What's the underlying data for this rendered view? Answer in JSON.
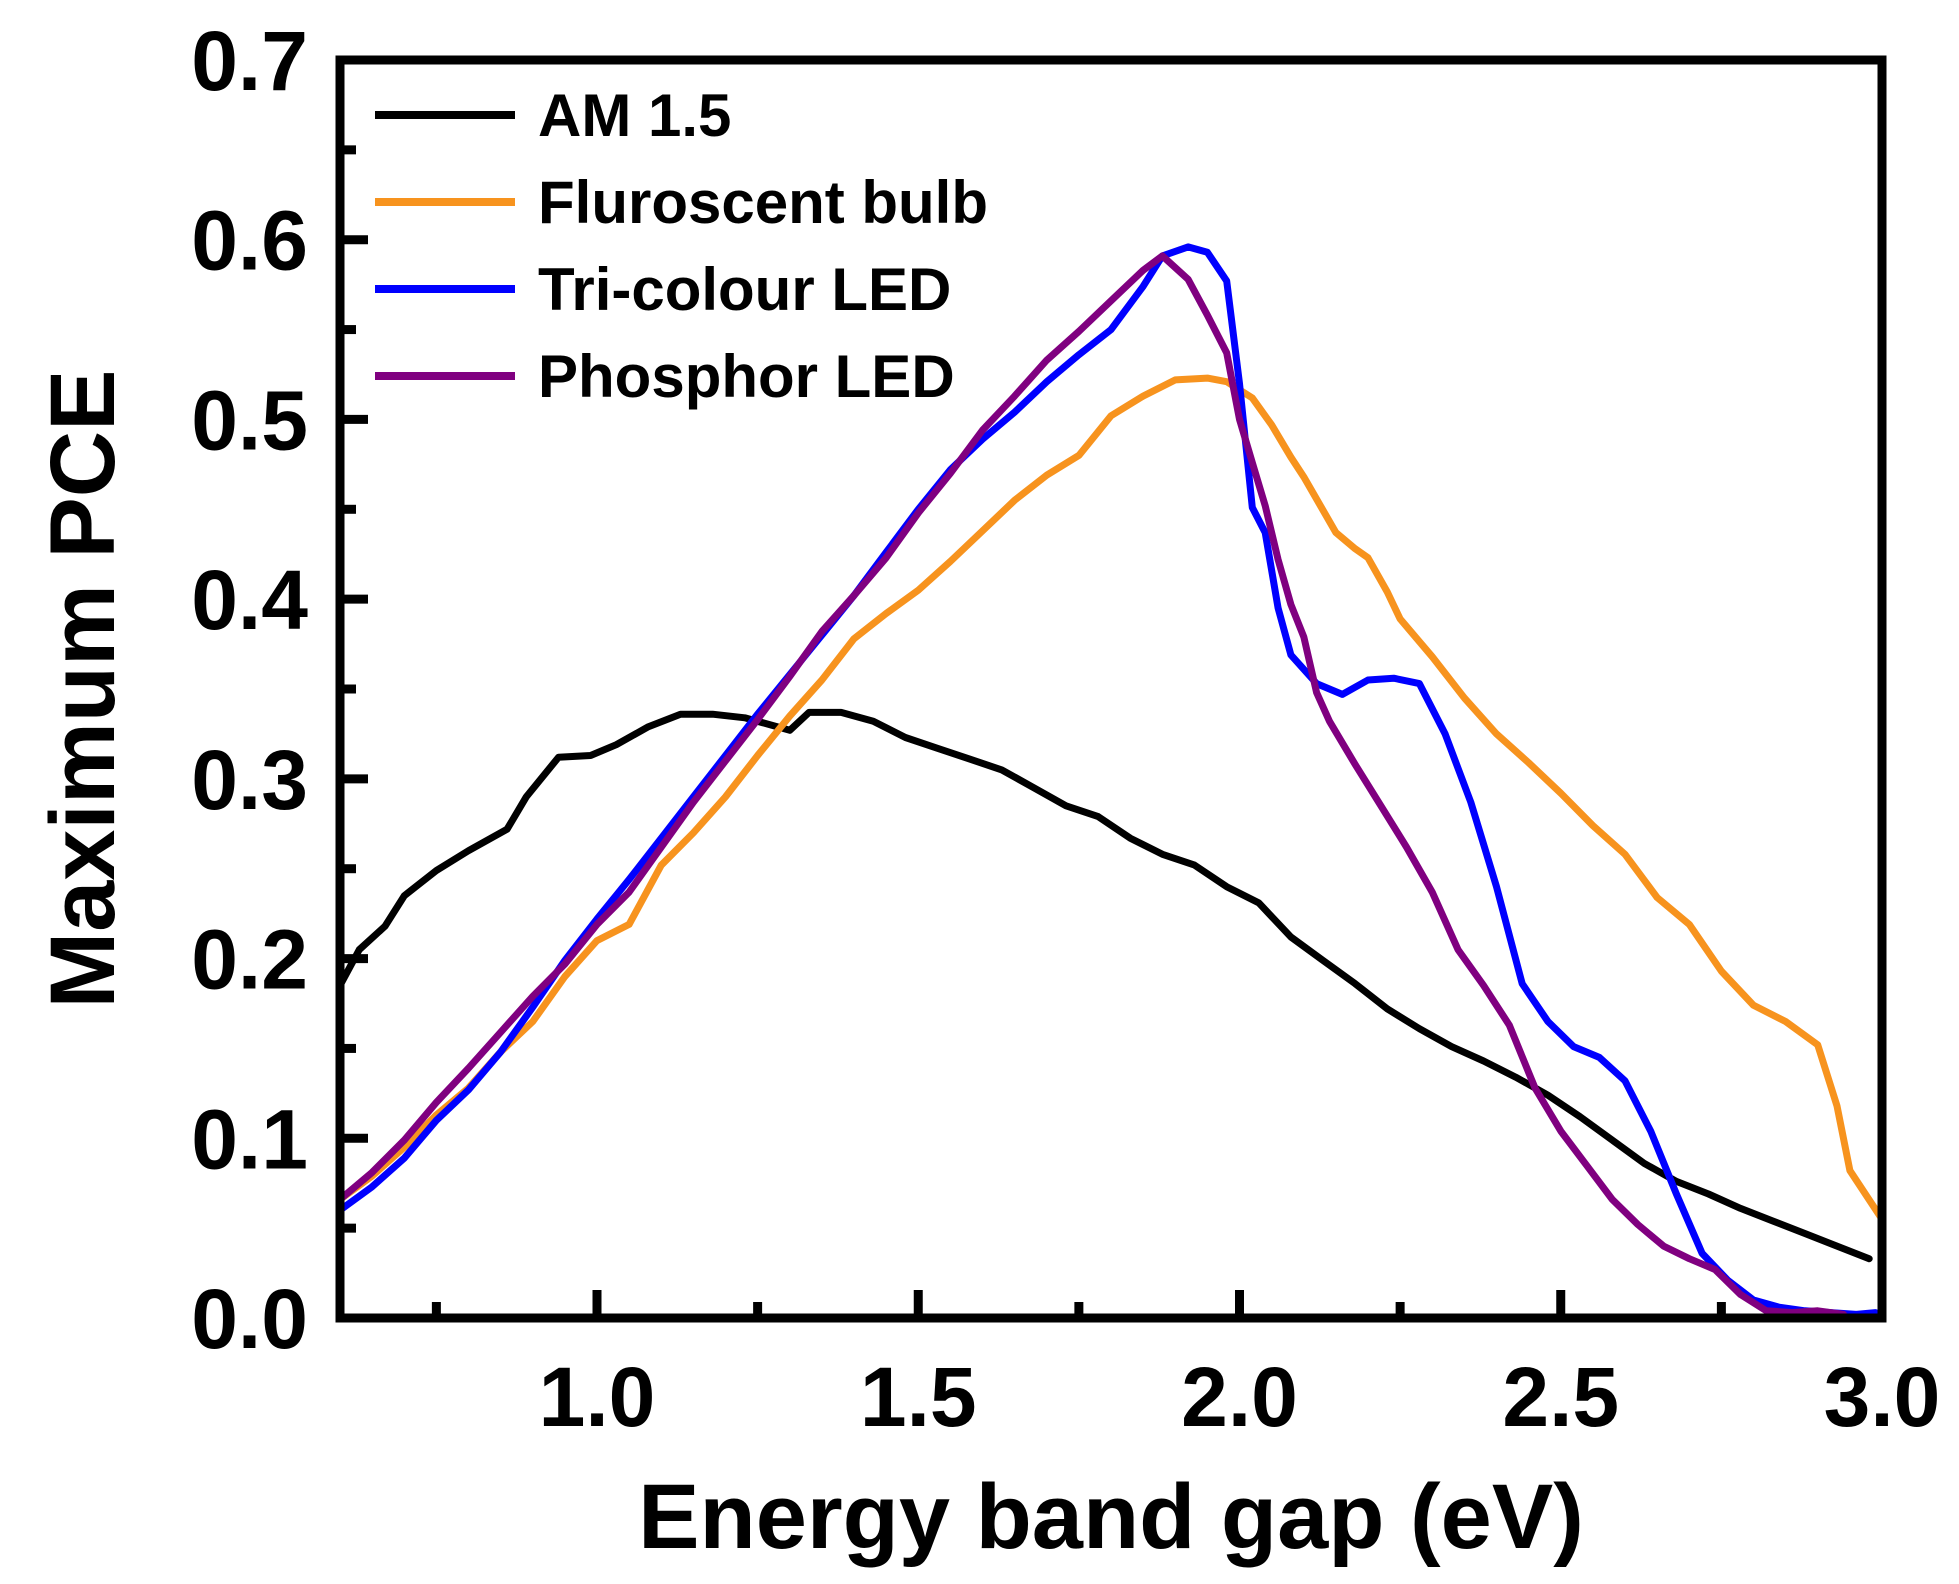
{
  "chart_data": {
    "type": "line",
    "title": "",
    "xlabel": "Energy band gap (eV)",
    "ylabel": "Maximum PCE",
    "xlim": [
      0.6,
      3.0
    ],
    "ylim": [
      0.0,
      0.7
    ],
    "x_major_ticks": [
      1.0,
      1.5,
      2.0,
      2.5,
      3.0
    ],
    "x_tick_labels": [
      "1.0",
      "1.5",
      "2.0",
      "2.5",
      "3.0"
    ],
    "x_minor_ticks": [
      0.75,
      1.25,
      1.75,
      2.25,
      2.75
    ],
    "y_major_ticks": [
      0.0,
      0.1,
      0.2,
      0.3,
      0.4,
      0.5,
      0.6,
      0.7
    ],
    "y_tick_labels": [
      "0.0",
      "0.1",
      "0.2",
      "0.3",
      "0.4",
      "0.5",
      "0.6",
      "0.7"
    ],
    "y_minor_ticks": [
      0.05,
      0.15,
      0.25,
      0.35,
      0.45,
      0.55,
      0.65
    ],
    "grid": false,
    "legend_position": "top-left",
    "series": [
      {
        "name": "AM 1.5",
        "color": "#000000",
        "x": [
          0.6,
          0.63,
          0.67,
          0.7,
          0.75,
          0.8,
          0.86,
          0.89,
          0.94,
          0.99,
          1.03,
          1.08,
          1.13,
          1.18,
          1.23,
          1.27,
          1.3,
          1.33,
          1.38,
          1.43,
          1.48,
          1.53,
          1.58,
          1.63,
          1.68,
          1.73,
          1.78,
          1.83,
          1.88,
          1.93,
          1.98,
          2.03,
          2.08,
          2.13,
          2.18,
          2.23,
          2.28,
          2.33,
          2.38,
          2.43,
          2.48,
          2.53,
          2.58,
          2.63,
          2.68,
          2.73,
          2.78,
          2.83,
          2.88,
          2.93,
          2.98
        ],
        "y": [
          0.185,
          0.205,
          0.218,
          0.235,
          0.249,
          0.26,
          0.272,
          0.29,
          0.312,
          0.313,
          0.319,
          0.329,
          0.336,
          0.336,
          0.334,
          0.33,
          0.327,
          0.337,
          0.337,
          0.332,
          0.323,
          0.317,
          0.311,
          0.305,
          0.295,
          0.285,
          0.279,
          0.267,
          0.258,
          0.252,
          0.24,
          0.231,
          0.212,
          0.199,
          0.186,
          0.172,
          0.161,
          0.151,
          0.143,
          0.134,
          0.124,
          0.112,
          0.099,
          0.086,
          0.076,
          0.069,
          0.061,
          0.054,
          0.047,
          0.04,
          0.033
        ]
      },
      {
        "name": "Fluroscent bulb",
        "color": "#F7931E",
        "x": [
          0.6,
          0.65,
          0.7,
          0.75,
          0.8,
          0.85,
          0.9,
          0.95,
          1.0,
          1.05,
          1.1,
          1.15,
          1.2,
          1.25,
          1.3,
          1.35,
          1.4,
          1.45,
          1.5,
          1.55,
          1.6,
          1.65,
          1.7,
          1.75,
          1.8,
          1.85,
          1.9,
          1.95,
          1.98,
          2.02,
          2.05,
          2.08,
          2.1,
          2.15,
          2.18,
          2.2,
          2.23,
          2.25,
          2.3,
          2.35,
          2.4,
          2.45,
          2.5,
          2.55,
          2.6,
          2.65,
          2.7,
          2.75,
          2.8,
          2.85,
          2.9,
          2.93,
          2.95,
          3.0
        ],
        "y": [
          0.066,
          0.079,
          0.095,
          0.113,
          0.128,
          0.148,
          0.165,
          0.19,
          0.21,
          0.219,
          0.252,
          0.27,
          0.29,
          0.313,
          0.335,
          0.355,
          0.378,
          0.392,
          0.405,
          0.421,
          0.438,
          0.455,
          0.469,
          0.48,
          0.502,
          0.513,
          0.522,
          0.523,
          0.521,
          0.512,
          0.497,
          0.479,
          0.468,
          0.437,
          0.428,
          0.423,
          0.404,
          0.389,
          0.368,
          0.345,
          0.325,
          0.309,
          0.292,
          0.274,
          0.258,
          0.234,
          0.219,
          0.193,
          0.174,
          0.165,
          0.152,
          0.118,
          0.082,
          0.055
        ]
      },
      {
        "name": "Tri-colour LED",
        "color": "#0000FF",
        "x": [
          0.6,
          0.65,
          0.7,
          0.75,
          0.8,
          0.85,
          0.9,
          0.95,
          1.0,
          1.05,
          1.1,
          1.15,
          1.2,
          1.25,
          1.3,
          1.35,
          1.4,
          1.45,
          1.5,
          1.55,
          1.6,
          1.65,
          1.7,
          1.75,
          1.8,
          1.85,
          1.88,
          1.92,
          1.95,
          1.98,
          2.0,
          2.02,
          2.04,
          2.06,
          2.08,
          2.12,
          2.16,
          2.2,
          2.24,
          2.28,
          2.32,
          2.36,
          2.4,
          2.44,
          2.48,
          2.52,
          2.56,
          2.6,
          2.64,
          2.68,
          2.72,
          2.76,
          2.8,
          2.84,
          2.88,
          2.92,
          2.96,
          2.99
        ],
        "y": [
          0.06,
          0.073,
          0.089,
          0.11,
          0.127,
          0.148,
          0.173,
          0.199,
          0.222,
          0.244,
          0.267,
          0.29,
          0.313,
          0.336,
          0.358,
          0.38,
          0.402,
          0.426,
          0.45,
          0.472,
          0.489,
          0.504,
          0.521,
          0.536,
          0.55,
          0.574,
          0.591,
          0.596,
          0.593,
          0.577,
          0.52,
          0.451,
          0.437,
          0.395,
          0.369,
          0.353,
          0.347,
          0.355,
          0.356,
          0.353,
          0.325,
          0.287,
          0.24,
          0.186,
          0.165,
          0.151,
          0.145,
          0.132,
          0.104,
          0.069,
          0.036,
          0.021,
          0.01,
          0.006,
          0.004,
          0.003,
          0.002,
          0.003
        ]
      },
      {
        "name": "Phosphor LED",
        "color": "#800080",
        "x": [
          0.6,
          0.65,
          0.7,
          0.75,
          0.8,
          0.85,
          0.9,
          0.95,
          1.0,
          1.05,
          1.1,
          1.15,
          1.2,
          1.25,
          1.3,
          1.35,
          1.4,
          1.45,
          1.5,
          1.55,
          1.6,
          1.65,
          1.7,
          1.75,
          1.8,
          1.85,
          1.88,
          1.92,
          1.95,
          1.98,
          2.0,
          2.02,
          2.04,
          2.06,
          2.08,
          2.1,
          2.12,
          2.14,
          2.18,
          2.22,
          2.26,
          2.3,
          2.34,
          2.38,
          2.42,
          2.46,
          2.5,
          2.54,
          2.58,
          2.62,
          2.66,
          2.7,
          2.74,
          2.78,
          2.82,
          2.86,
          2.9,
          2.94
        ],
        "y": [
          0.066,
          0.081,
          0.099,
          0.12,
          0.139,
          0.159,
          0.179,
          0.197,
          0.219,
          0.237,
          0.262,
          0.287,
          0.31,
          0.333,
          0.357,
          0.382,
          0.402,
          0.423,
          0.448,
          0.47,
          0.494,
          0.513,
          0.533,
          0.549,
          0.566,
          0.583,
          0.591,
          0.578,
          0.558,
          0.537,
          0.5,
          0.476,
          0.452,
          0.422,
          0.397,
          0.379,
          0.348,
          0.332,
          0.308,
          0.285,
          0.262,
          0.237,
          0.205,
          0.185,
          0.163,
          0.128,
          0.104,
          0.085,
          0.066,
          0.052,
          0.04,
          0.033,
          0.027,
          0.013,
          0.004,
          0.003,
          0.004,
          0.002
        ]
      }
    ]
  }
}
